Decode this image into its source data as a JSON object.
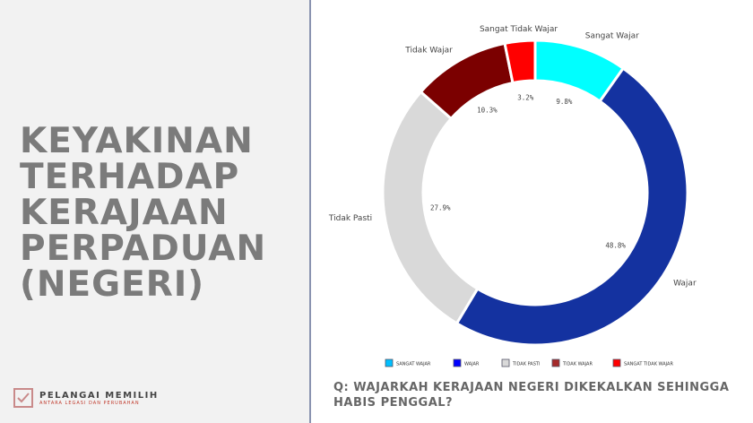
{
  "title_lines": [
    "KEYAKINAN",
    "TERHADAP",
    "KERAJAAN",
    "PERPADUAN",
    "(NEGERI)"
  ],
  "logo": {
    "name": "PELANGAI MEMILIH",
    "tagline": "ANTARA LEGASI DAN PERUBAHAN"
  },
  "question": "Q: WAJARKAH KERAJAAN NEGERI DIKEKALKAN SEHINGGA HABIS PENGGAL?",
  "chart_data": {
    "type": "pie",
    "donut": true,
    "start": "top",
    "direction": "clockwise",
    "categories": [
      "Sangat Wajar",
      "Wajar",
      "Tidak Pasti",
      "Tidak Wajar",
      "Sangat Tidak Wajar"
    ],
    "values": [
      9.8,
      48.8,
      27.9,
      10.3,
      3.2
    ],
    "value_labels": [
      "9.8%",
      "48.8%",
      "27.9%",
      "10.3%",
      "3.2%"
    ],
    "colors": [
      "#00ffff",
      "#1432a0",
      "#d9d9d9",
      "#7b0000",
      "#ff0000"
    ],
    "legend": {
      "placement": "bottom",
      "entries": [
        "SANGAT WAJAR",
        "WAJAR",
        "TIDAK PASTI",
        "TIDAK WAJAR",
        "SANGAT TIDAK WAJAR"
      ],
      "colors": [
        "#00bfff",
        "#0000ff",
        "#d9d9d9",
        "#a52a2a",
        "#ff0000"
      ]
    }
  }
}
